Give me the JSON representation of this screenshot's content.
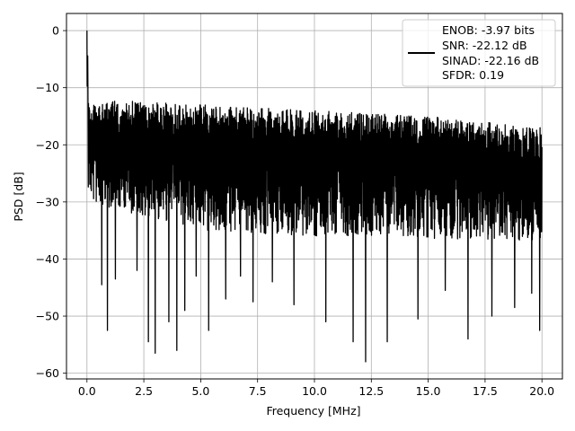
{
  "chart_data": {
    "type": "line",
    "title": "",
    "xlabel": "Frequency [MHz]",
    "ylabel": "PSD [dB]",
    "xlim": [
      -0.9,
      20.9
    ],
    "ylim": [
      -61,
      3
    ],
    "xticks": [
      0.0,
      2.5,
      5.0,
      7.5,
      10.0,
      12.5,
      15.0,
      17.5,
      20.0
    ],
    "xtick_labels": [
      "0.0",
      "2.5",
      "5.0",
      "7.5",
      "10.0",
      "12.5",
      "15.0",
      "17.5",
      "20.0"
    ],
    "yticks": [
      0,
      -10,
      -20,
      -30,
      -40,
      -50,
      -60
    ],
    "ytick_labels": [
      "0",
      "−10",
      "−20",
      "−30",
      "−40",
      "−50",
      "−60"
    ],
    "grid": true,
    "legend": {
      "position": "top-right",
      "entries": [
        "ENOB: -3.97 bits",
        "SNR: -22.12 dB",
        "SINAD: -22.16 dB",
        "SFDR: 0.19"
      ]
    },
    "series": [
      {
        "color": "#000000",
        "frequency_range_mhz": [
          0.0,
          20.0
        ],
        "peak": {
          "x": 0.0,
          "y": 0.0
        },
        "upper_envelope": {
          "x": [
            0.0,
            0.05,
            0.3,
            0.8,
            2.0,
            5.0,
            10.0,
            15.0,
            20.0
          ],
          "y": [
            0.0,
            -6.0,
            -9.0,
            -11.0,
            -11.5,
            -11.5,
            -12.0,
            -13.0,
            -14.0
          ]
        },
        "noise_band": {
          "x": [
            0.0,
            5.0,
            10.0,
            15.0,
            20.0
          ],
          "high": [
            -12.0,
            -13.0,
            -14.0,
            -15.0,
            -17.0
          ],
          "low": [
            -30.0,
            -35.0,
            -36.0,
            -36.5,
            -37.0
          ]
        },
        "deep_nulls": [
          {
            "x": 0.65,
            "y": -44.5
          },
          {
            "x": 0.9,
            "y": -52.5
          },
          {
            "x": 1.25,
            "y": -43.5
          },
          {
            "x": 2.2,
            "y": -42.0
          },
          {
            "x": 2.7,
            "y": -54.5
          },
          {
            "x": 3.0,
            "y": -56.5
          },
          {
            "x": 3.6,
            "y": -51.0
          },
          {
            "x": 3.95,
            "y": -56.0
          },
          {
            "x": 4.3,
            "y": -49.0
          },
          {
            "x": 4.8,
            "y": -43.0
          },
          {
            "x": 5.35,
            "y": -52.5
          },
          {
            "x": 6.1,
            "y": -47.0
          },
          {
            "x": 6.75,
            "y": -43.0
          },
          {
            "x": 7.3,
            "y": -47.5
          },
          {
            "x": 8.15,
            "y": -44.0
          },
          {
            "x": 9.1,
            "y": -48.0
          },
          {
            "x": 10.5,
            "y": -51.0
          },
          {
            "x": 11.7,
            "y": -54.5
          },
          {
            "x": 12.25,
            "y": -58.0
          },
          {
            "x": 13.2,
            "y": -54.5
          },
          {
            "x": 14.55,
            "y": -50.5
          },
          {
            "x": 15.75,
            "y": -45.5
          },
          {
            "x": 16.75,
            "y": -54.0
          },
          {
            "x": 17.8,
            "y": -50.0
          },
          {
            "x": 18.8,
            "y": -48.5
          },
          {
            "x": 19.55,
            "y": -46.0
          },
          {
            "x": 19.9,
            "y": -52.5
          }
        ]
      }
    ]
  }
}
